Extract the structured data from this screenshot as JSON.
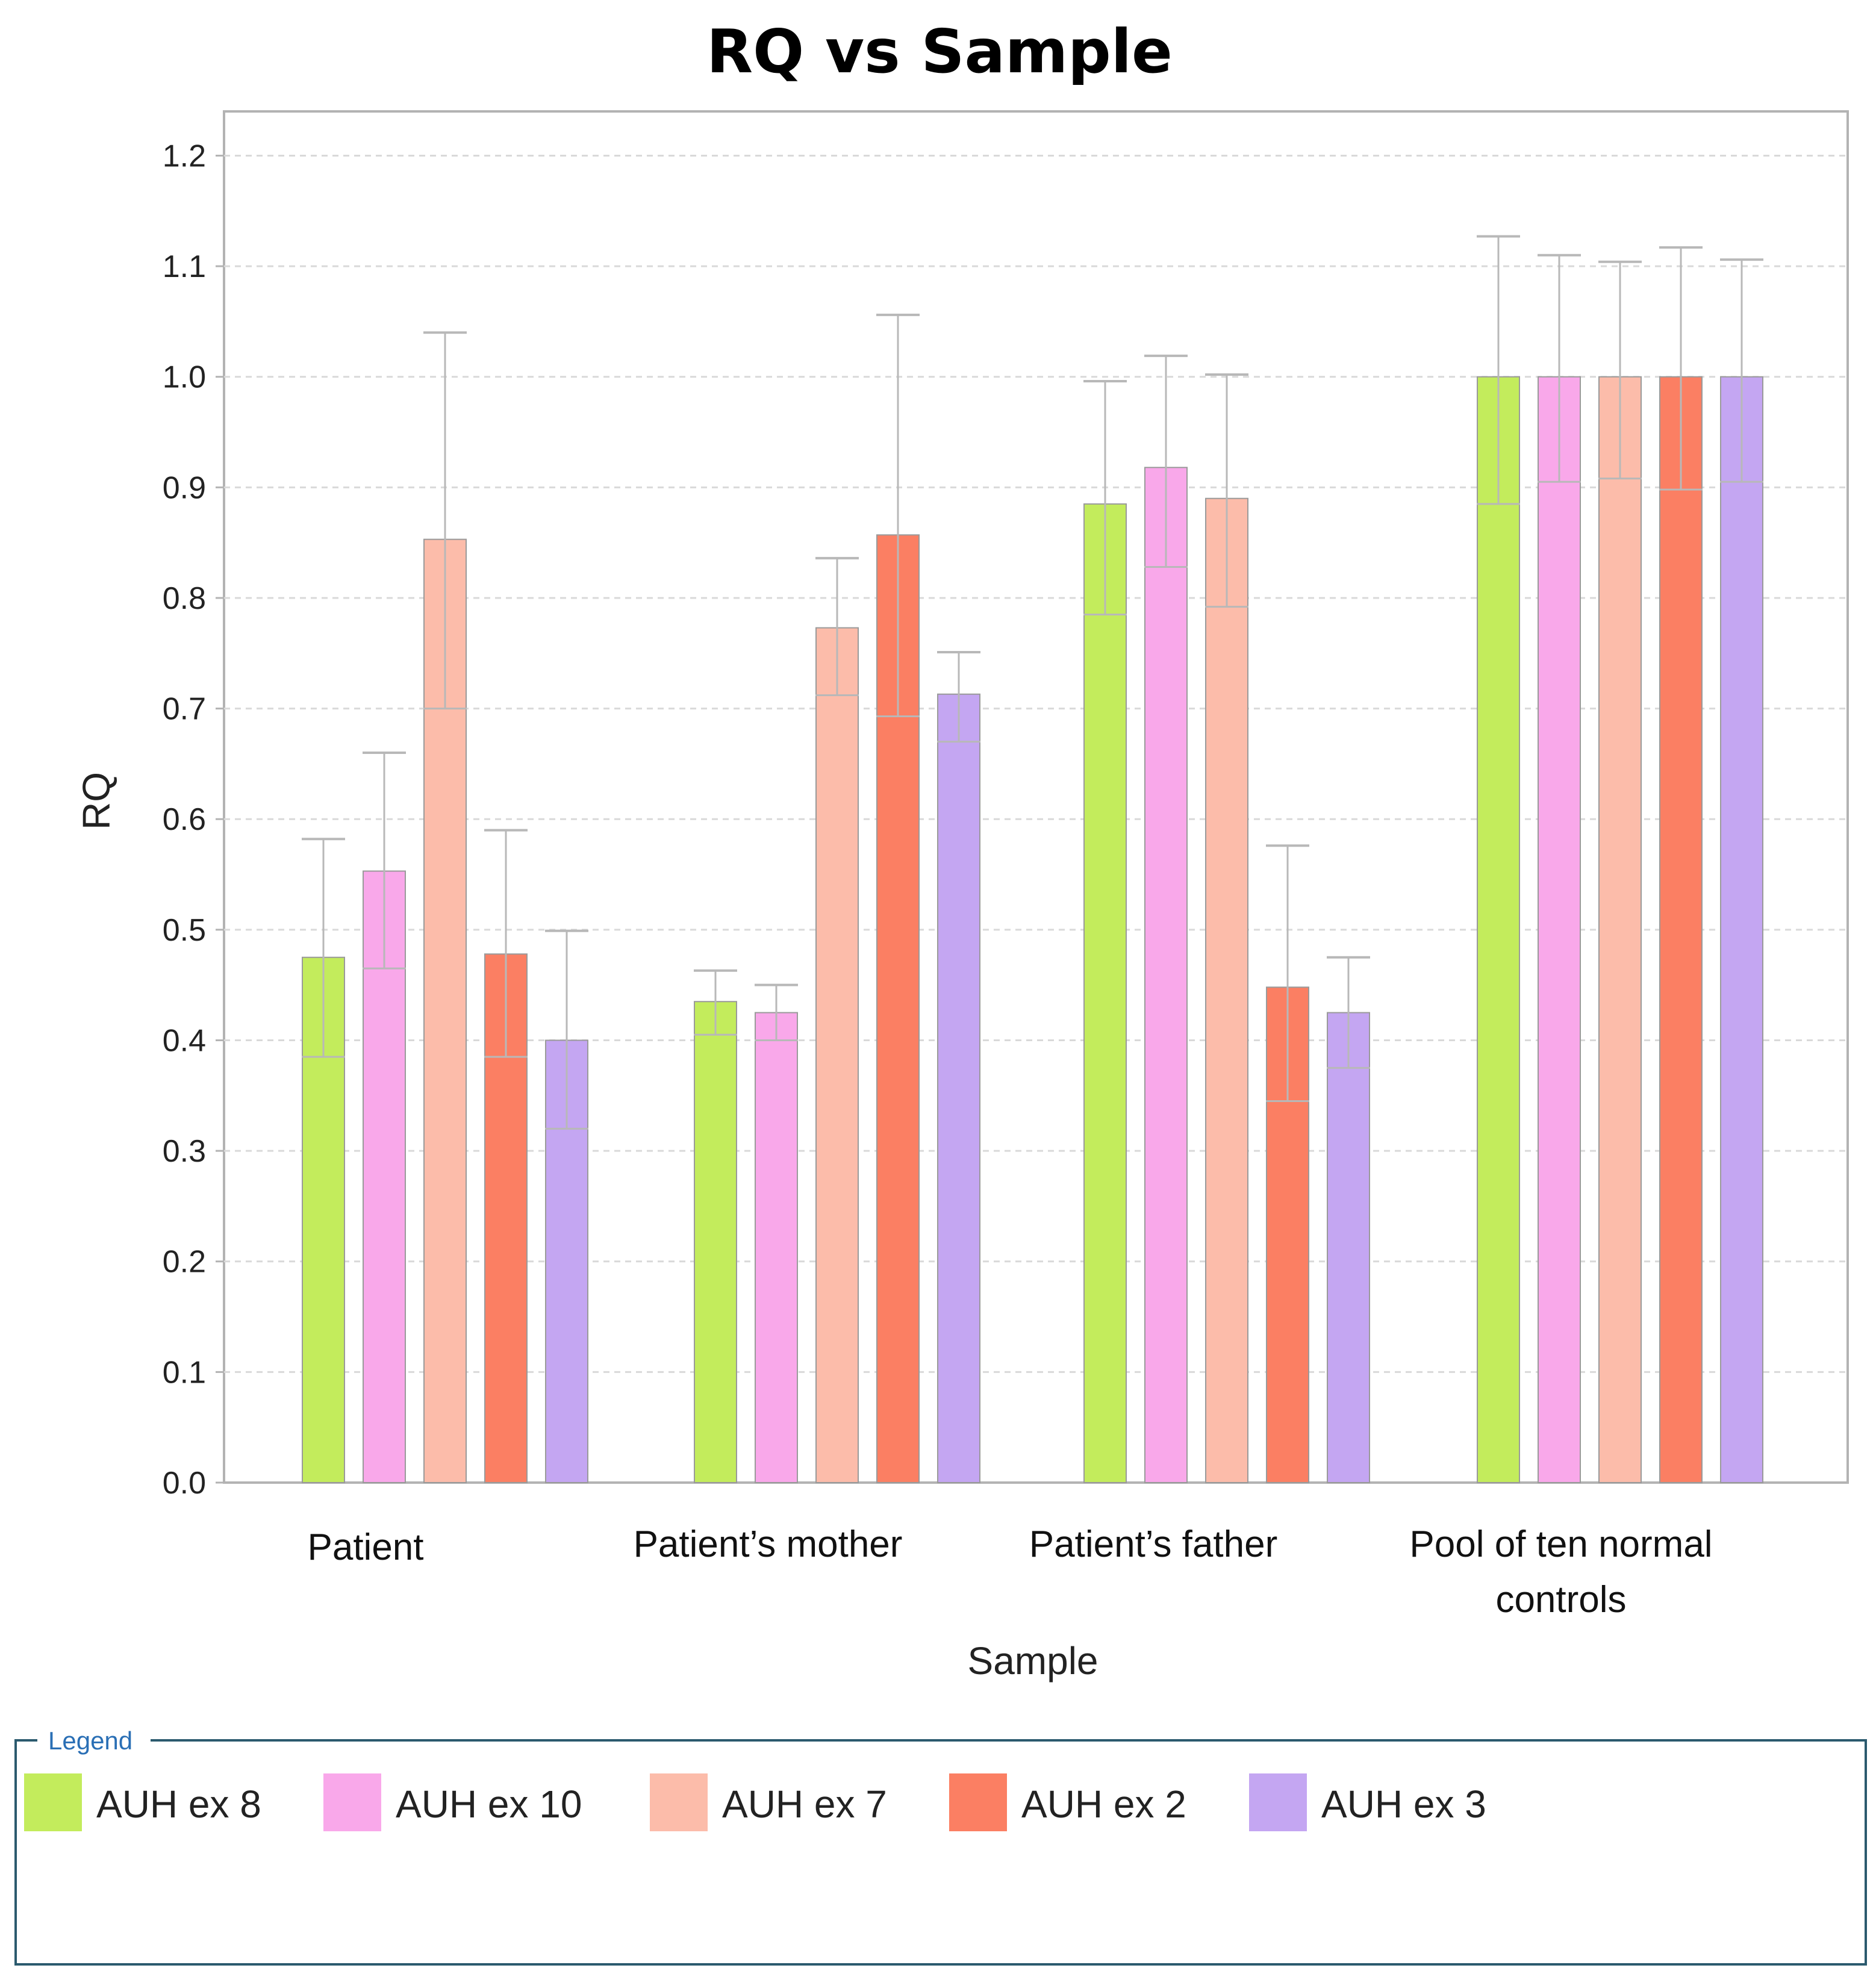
{
  "colors": {
    "AUH ex 8": "#c3ec5c",
    "AUH ex 10": "#f9a8ea",
    "AUH ex 7": "#fcbcaa",
    "AUH ex 2": "#fb7f63",
    "AUH ex 3": "#c4a6f2",
    "grid": "#d9d9d9",
    "frame": "#b3b3b3",
    "error_bar": "#b8b8b8",
    "legend_border": "#2b5a6e"
  },
  "chart_data": {
    "type": "bar",
    "title": "RQ vs Sample",
    "xlabel": "Sample",
    "ylabel": "RQ",
    "ylim": [
      0,
      1.24
    ],
    "yticks": [
      "0.0",
      "0.1",
      "0.2",
      "0.3",
      "0.4",
      "0.5",
      "0.6",
      "0.7",
      "0.8",
      "0.9",
      "1.0",
      "1.1",
      "1.2"
    ],
    "grid": true,
    "categories": [
      [
        "Patient"
      ],
      [
        "Patient’s mother"
      ],
      [
        "Patient’s father"
      ],
      [
        "Pool of ten normal",
        "controls"
      ]
    ],
    "series": [
      {
        "name": "AUH ex 8",
        "values": [
          0.475,
          0.435,
          0.885,
          1.0
        ],
        "err_low": [
          0.385,
          0.405,
          0.785,
          0.885
        ],
        "err_high": [
          0.582,
          0.463,
          0.996,
          1.127
        ]
      },
      {
        "name": "AUH ex 10",
        "values": [
          0.553,
          0.425,
          0.918,
          1.0
        ],
        "err_low": [
          0.465,
          0.4,
          0.828,
          0.905
        ],
        "err_high": [
          0.66,
          0.45,
          1.019,
          1.11
        ]
      },
      {
        "name": "AUH ex 7",
        "values": [
          0.853,
          0.773,
          0.89,
          1.0
        ],
        "err_low": [
          0.7,
          0.712,
          0.792,
          0.908
        ],
        "err_high": [
          1.04,
          0.836,
          1.002,
          1.104
        ]
      },
      {
        "name": "AUH ex 2",
        "values": [
          0.478,
          0.857,
          0.448,
          1.0
        ],
        "err_low": [
          0.385,
          0.693,
          0.345,
          0.898
        ],
        "err_high": [
          0.59,
          1.056,
          0.576,
          1.117
        ]
      },
      {
        "name": "AUH ex 3",
        "values": [
          0.4,
          0.713,
          0.425,
          1.0
        ],
        "err_low": [
          0.32,
          0.67,
          0.375,
          0.905
        ],
        "err_high": [
          0.499,
          0.751,
          0.475,
          1.106
        ]
      }
    ],
    "legend": {
      "title": "Legend",
      "position": "bottom",
      "items": [
        "AUH ex 8",
        "AUH ex 10",
        "AUH ex 7",
        "AUH ex 2",
        "AUH ex 3"
      ]
    }
  }
}
